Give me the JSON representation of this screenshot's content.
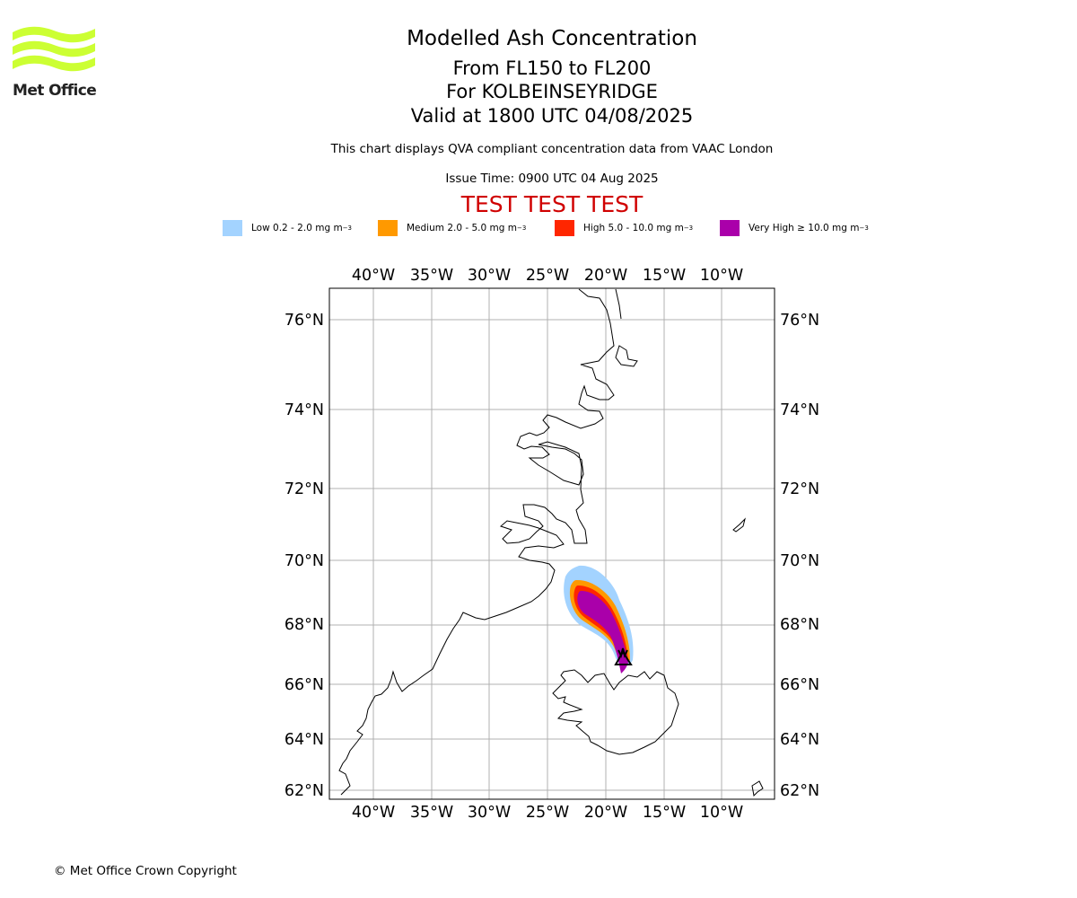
{
  "brand": {
    "name": "Met Office",
    "accent": "#ccff33"
  },
  "header": {
    "title": "Modelled Ash Concentration",
    "levels": "From FL150 to FL200",
    "location": "For KOLBEINSEYRIDGE",
    "valid": "Valid at 1800 UTC 04/08/2025",
    "description": "This chart displays QVA compliant concentration data from VAAC London",
    "issue_time": "Issue Time: 0900 UTC 04 Aug 2025",
    "test_banner": "TEST TEST TEST"
  },
  "legend": [
    {
      "label": "Low 0.2 - 2.0 mg m",
      "unit_exp": "−3",
      "color": "#a3d3ff"
    },
    {
      "label": "Medium 2.0 - 5.0 mg m",
      "unit_exp": "−3",
      "color": "#ff9900"
    },
    {
      "label": "High 5.0 - 10.0 mg m",
      "unit_exp": "−3",
      "color": "#ff2600"
    },
    {
      "label": "Very High  ≥  10.0 mg m",
      "unit_exp": "−3",
      "color": "#aa00aa"
    }
  ],
  "map": {
    "lon_labels": [
      "40°W",
      "35°W",
      "30°W",
      "25°W",
      "20°W",
      "15°W",
      "10°W"
    ],
    "lat_labels": [
      "76°N",
      "74°N",
      "72°N",
      "70°N",
      "68°N",
      "66°N",
      "64°N",
      "62°N"
    ],
    "volcano_icon": "volcano-triangle-icon"
  },
  "footer": {
    "copyright": "© Met Office Crown Copyright"
  }
}
